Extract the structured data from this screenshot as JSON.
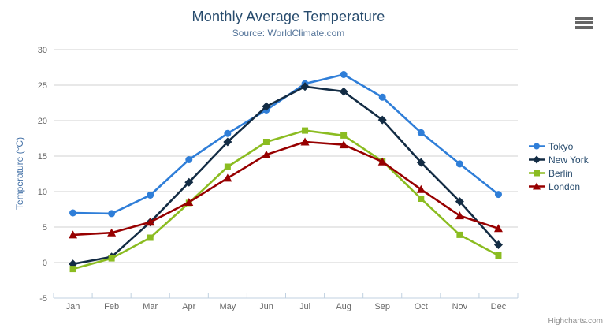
{
  "header": {
    "title": "Monthly Average Temperature",
    "subtitle": "Source: WorldClimate.com"
  },
  "menu": {
    "icon": "hamburger-icon"
  },
  "credits": {
    "label": "Highcharts.com"
  },
  "colors": {
    "title_text": "#274b6d",
    "subtitle_text": "#55759a",
    "yaxis_title_text": "#4572a7",
    "tick_label_text": "#666666",
    "gridline": "#d0d0d0",
    "xaxis_line": "#c0d0e0",
    "legend_text": "#274b6d",
    "credits_text": "#909090",
    "menu_icon": "#666666"
  },
  "chart_data": {
    "type": "line",
    "title": "Monthly Average Temperature",
    "subtitle": "Source: WorldClimate.com",
    "xlabel": "",
    "ylabel": "Temperature (°C)",
    "ylim": [
      -5,
      30
    ],
    "ytick_step": 5,
    "grid": true,
    "legend_position": "right",
    "categories": [
      "Jan",
      "Feb",
      "Mar",
      "Apr",
      "May",
      "Jun",
      "Jul",
      "Aug",
      "Sep",
      "Oct",
      "Nov",
      "Dec"
    ],
    "series": [
      {
        "name": "Tokyo",
        "color": "#2f7ed8",
        "marker": "circle",
        "values": [
          7.0,
          6.9,
          9.5,
          14.5,
          18.2,
          21.5,
          25.2,
          26.5,
          23.3,
          18.3,
          13.9,
          9.6
        ]
      },
      {
        "name": "New York",
        "color": "#132c44",
        "marker": "diamond",
        "values": [
          -0.2,
          0.8,
          5.7,
          11.3,
          17.0,
          22.0,
          24.8,
          24.1,
          20.1,
          14.1,
          8.6,
          2.5
        ]
      },
      {
        "name": "Berlin",
        "color": "#8bbc21",
        "marker": "square",
        "values": [
          -0.9,
          0.6,
          3.5,
          8.4,
          13.5,
          17.0,
          18.6,
          17.9,
          14.3,
          9.0,
          3.9,
          1.0
        ]
      },
      {
        "name": "London",
        "color": "#970000",
        "marker": "triangle",
        "values": [
          3.9,
          4.2,
          5.7,
          8.5,
          11.9,
          15.2,
          17.0,
          16.6,
          14.2,
          10.3,
          6.6,
          4.8
        ]
      }
    ]
  }
}
